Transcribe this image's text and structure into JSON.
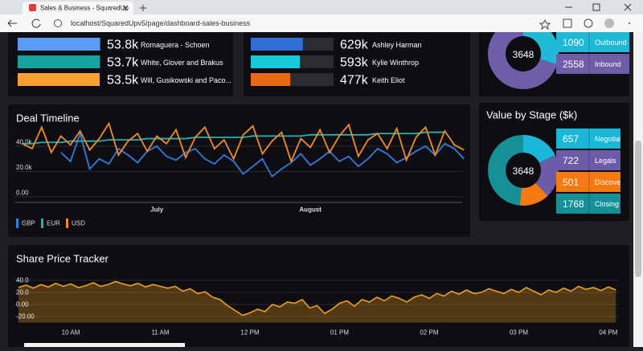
{
  "browser": {
    "tab_title": "Sales & Business - SquaredUp",
    "url": "localhost/SquaredUpv5/page/dashboard-sales-business"
  },
  "chart_data": [
    {
      "type": "hbar",
      "categories": [
        "Romaguera - Schoen",
        "White, Glover and Brakus",
        "Will, Gusikowski and Paco..."
      ],
      "values": [
        53800,
        53700,
        53500
      ],
      "value_labels": [
        "53.8k",
        "53.7k",
        "53.5k"
      ],
      "colors": [
        "#5b9cf6",
        "#14a3a0",
        "#f7a030"
      ],
      "xlim": [
        0,
        54000
      ]
    },
    {
      "type": "hbar",
      "categories": [
        "Ashley Harman",
        "Kylie Winthrop",
        "Keith Eliot"
      ],
      "values": [
        629000,
        593000,
        477000
      ],
      "value_labels": [
        "629k",
        "593k",
        "477k"
      ],
      "colors": [
        "#2f6fd6",
        "#15c9d9",
        "#e8690f"
      ],
      "xlim": [
        0,
        1000000
      ],
      "track": true
    },
    {
      "type": "donut",
      "total": 3648,
      "categories": [
        "Outbound",
        "Inbound"
      ],
      "values": [
        1090,
        2558
      ],
      "colors": [
        "#1fb8d6",
        "#6e5ea8"
      ]
    },
    {
      "type": "line",
      "title": "Deal Timeline",
      "categories": [
        null,
        null,
        null,
        null,
        null,
        null,
        null,
        null,
        null,
        null,
        null,
        null,
        null,
        null,
        "July",
        null,
        null,
        null,
        null,
        null,
        null,
        null,
        null,
        null,
        null,
        null,
        null,
        null,
        null,
        null,
        "August",
        null,
        null,
        null,
        null,
        null,
        null,
        null,
        null,
        null,
        null,
        null,
        null,
        null,
        null,
        null,
        null
      ],
      "series": [
        {
          "name": "GBP",
          "color": "#2f7de1",
          "values": [
            null,
            null,
            null,
            null,
            35000,
            28000,
            50000,
            22000,
            30000,
            26000,
            38000,
            33000,
            27000,
            36000,
            40000,
            32000,
            29000,
            35000,
            38000,
            30000,
            26000,
            33000,
            28000,
            18000,
            24000,
            30000,
            16000,
            22000,
            27000,
            34000,
            25000,
            30000,
            36000,
            28000,
            32000,
            24000,
            30000,
            38000,
            34000,
            27000,
            31000,
            36000,
            40000,
            33000,
            42000,
            38000,
            30000
          ]
        },
        {
          "name": "EUR",
          "color": "#1fb5b5",
          "values": [
            42000,
            42000,
            43000,
            43000,
            43000,
            44000,
            44000,
            44000,
            44000,
            45000,
            45000,
            45000,
            45000,
            46000,
            46000,
            46000,
            46000,
            46000,
            47000,
            47000,
            47000,
            47000,
            47000,
            47000,
            48000,
            48000,
            48000,
            48000,
            48000,
            48000,
            49000,
            49000,
            49000,
            49000,
            49000,
            49000,
            49000,
            50000,
            50000,
            50000,
            50000,
            50000,
            51000,
            51000,
            51000,
            null,
            null
          ]
        },
        {
          "name": "USD",
          "color": "#f28c28",
          "values": [
            42000,
            38000,
            55000,
            35000,
            48000,
            41000,
            52000,
            37000,
            46000,
            58000,
            33000,
            44000,
            50000,
            36000,
            48000,
            42000,
            53000,
            31000,
            47000,
            55000,
            38000,
            45000,
            30000,
            49000,
            56000,
            34000,
            44000,
            51000,
            28000,
            46000,
            39000,
            53000,
            35000,
            48000,
            57000,
            32000,
            45000,
            50000,
            38000,
            54000,
            29000,
            47000,
            55000,
            33000,
            52000,
            41000,
            37000
          ]
        }
      ],
      "ylim": [
        0,
        60000
      ],
      "yticks": [
        {
          "value": 40000,
          "label": "40.0k"
        },
        {
          "value": 20000,
          "label": "20.0k"
        },
        {
          "value": 0,
          "label": "0.00"
        }
      ],
      "grid": true
    },
    {
      "type": "donut",
      "title": "Value by Stage ($k)",
      "total": 3648,
      "categories": [
        "Negotiation",
        "Legals",
        "Discovery",
        "Closing"
      ],
      "values": [
        657,
        722,
        501,
        1768
      ],
      "colors": [
        "#1ab8d8",
        "#6c5ba6",
        "#f57a14",
        "#159097"
      ]
    },
    {
      "type": "area",
      "title": "Share Price Tracker",
      "color": "#f0a020",
      "categories": [
        null,
        null,
        null,
        null,
        null,
        null,
        null,
        "10 AM",
        null,
        null,
        null,
        null,
        null,
        null,
        null,
        null,
        null,
        null,
        null,
        "11 AM",
        null,
        null,
        null,
        null,
        null,
        null,
        null,
        null,
        null,
        null,
        null,
        "12 PM",
        null,
        null,
        null,
        null,
        null,
        null,
        null,
        null,
        null,
        null,
        null,
        "01 PM",
        null,
        null,
        null,
        null,
        null,
        null,
        null,
        null,
        null,
        null,
        null,
        "02 PM",
        null,
        null,
        null,
        null,
        null,
        null,
        null,
        null,
        null,
        null,
        null,
        "03 PM",
        null,
        null,
        null,
        null,
        null,
        null,
        null,
        null,
        null,
        null,
        null,
        "04 PM",
        null
      ],
      "values": [
        28,
        32,
        27,
        33,
        29,
        35,
        30,
        34,
        28,
        31,
        36,
        30,
        33,
        38,
        34,
        31,
        35,
        29,
        33,
        30,
        27,
        30,
        22,
        26,
        18,
        21,
        12,
        8,
        -2,
        -10,
        -18,
        -14,
        -8,
        -12,
        0,
        -4,
        4,
        2,
        8,
        -6,
        -2,
        -15,
        -8,
        2,
        6,
        -3,
        8,
        4,
        12,
        6,
        14,
        10,
        4,
        12,
        16,
        10,
        18,
        14,
        22,
        17,
        24,
        18,
        20,
        26,
        22,
        18,
        25,
        20,
        28,
        22,
        16,
        24,
        20,
        27,
        22,
        30,
        25,
        28,
        23,
        29,
        24
      ],
      "ylim": [
        -30,
        50
      ],
      "yticks": [
        {
          "value": 40,
          "label": "40.0"
        },
        {
          "value": 20,
          "label": "20.0"
        },
        {
          "value": 0,
          "label": "0.00"
        },
        {
          "value": -20,
          "label": "-20.00"
        }
      ],
      "grid": true
    }
  ]
}
